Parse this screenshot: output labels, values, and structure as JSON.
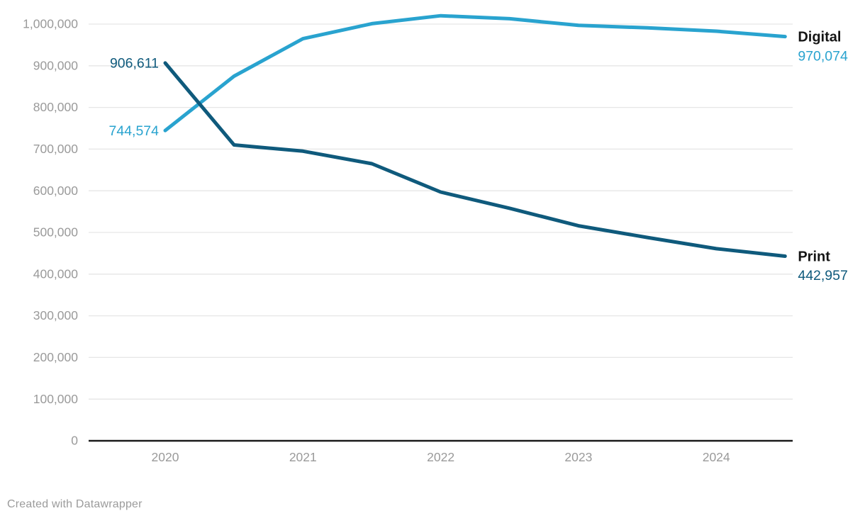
{
  "chart_data": {
    "type": "line",
    "x": [
      2020,
      2020.5,
      2021,
      2021.5,
      2022,
      2022.5,
      2023,
      2023.5,
      2024,
      2024.5
    ],
    "series": [
      {
        "name": "Digital",
        "color": "#29a3cf",
        "values": [
          744574,
          875000,
          965000,
          1001000,
          1020000,
          1013000,
          997000,
          991000,
          983000,
          970074
        ],
        "start_label": "744,574",
        "end_name_label": "Digital",
        "end_value_label": "970,074"
      },
      {
        "name": "Print",
        "color": "#0f5a7c",
        "values": [
          906611,
          710000,
          695000,
          665000,
          597000,
          558000,
          516000,
          488000,
          461000,
          442957
        ],
        "start_label": "906,611",
        "end_name_label": "Print",
        "end_value_label": "442,957"
      }
    ],
    "x_ticks": [
      2020,
      2021,
      2022,
      2023,
      2024
    ],
    "x_tick_labels": [
      "2020",
      "2021",
      "2022",
      "2023",
      "2024"
    ],
    "y_ticks": [
      0,
      100000,
      200000,
      300000,
      400000,
      500000,
      600000,
      700000,
      800000,
      900000,
      1000000
    ],
    "y_tick_labels": [
      "0",
      "100,000",
      "200,000",
      "300,000",
      "400,000",
      "500,000",
      "600,000",
      "700,000",
      "800,000",
      "900,000",
      "1,000,000"
    ],
    "xlim": [
      2020,
      2024.5
    ],
    "ylim": [
      0,
      1000000
    ],
    "grid": true,
    "legend_position": "line-end-labels",
    "title": "",
    "xlabel": "",
    "ylabel": ""
  },
  "colors": {
    "background": "#ffffff",
    "gridline": "#e6e6e6",
    "axis_line": "#1a1a1a",
    "tick_label": "#9a9a9a",
    "series_name_label": "#151515",
    "digital": "#29a3cf",
    "print": "#0f5a7c"
  },
  "footer": {
    "credit": "Created with Datawrapper"
  }
}
